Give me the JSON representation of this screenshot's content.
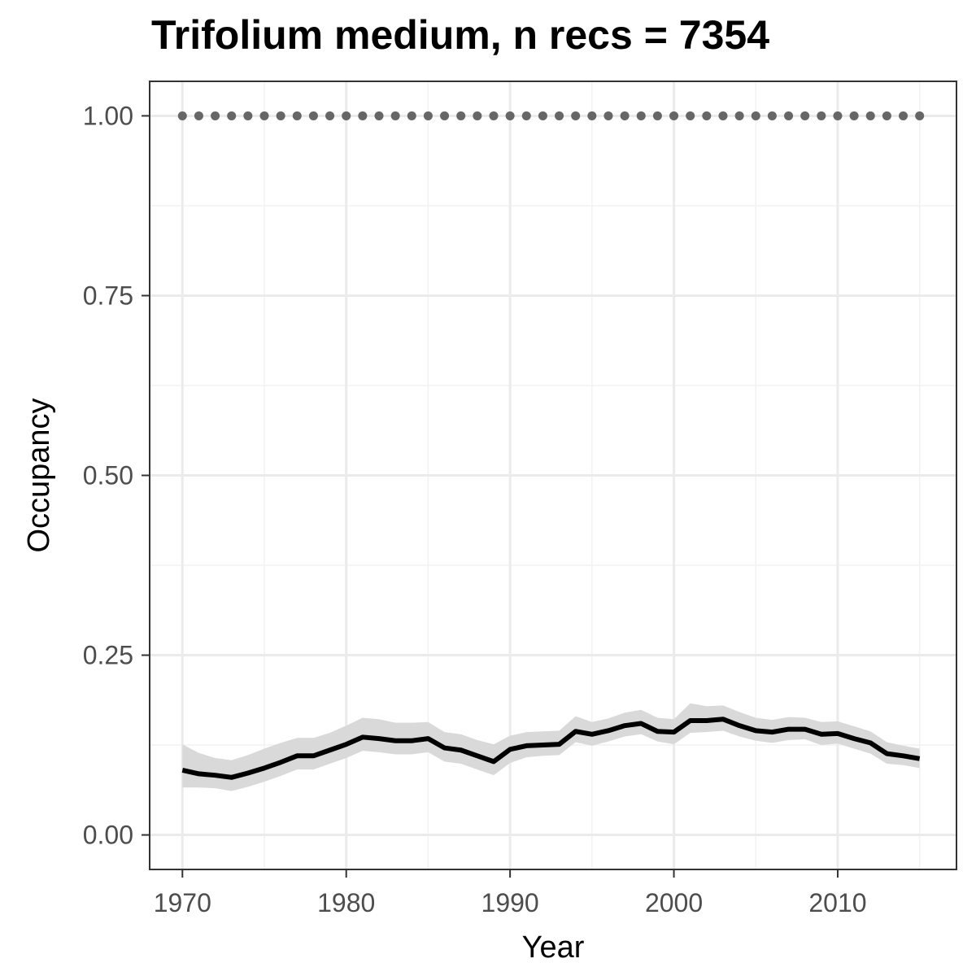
{
  "chart_data": {
    "type": "line",
    "title": "Trifolium medium, n recs = 7354",
    "xlabel": "Year",
    "ylabel": "Occupancy",
    "xlim": [
      1968,
      2017.25
    ],
    "ylim": [
      -0.048,
      1.048
    ],
    "grid": true,
    "x_ticks": [
      1970,
      1980,
      1990,
      2000,
      2010
    ],
    "x_tick_labels": [
      "1970",
      "1980",
      "1990",
      "2000",
      "2010"
    ],
    "y_ticks": [
      0,
      0.25,
      0.5,
      0.75,
      1.0
    ],
    "y_tick_labels": [
      "0.00",
      "0.25",
      "0.50",
      "0.75",
      "1.00"
    ],
    "series": [
      {
        "style": "solid",
        "color": "#000000",
        "x": [
          1970,
          1971,
          1972,
          1973,
          1974,
          1975,
          1976,
          1977,
          1978,
          1979,
          1980,
          1981,
          1982,
          1983,
          1984,
          1985,
          1986,
          1987,
          1988,
          1989,
          1990,
          1991,
          1992,
          1993,
          1994,
          1995,
          1996,
          1997,
          1998,
          1999,
          2000,
          2001,
          2002,
          2003,
          2004,
          2005,
          2006,
          2007,
          2008,
          2009,
          2010,
          2011,
          2012,
          2013,
          2014,
          2015
        ],
        "values": [
          0.09,
          0.085,
          0.083,
          0.08,
          0.086,
          0.093,
          0.101,
          0.11,
          0.11,
          0.118,
          0.126,
          0.136,
          0.134,
          0.131,
          0.131,
          0.134,
          0.121,
          0.118,
          0.11,
          0.102,
          0.119,
          0.124,
          0.125,
          0.126,
          0.144,
          0.14,
          0.145,
          0.152,
          0.155,
          0.144,
          0.143,
          0.159,
          0.159,
          0.161,
          0.152,
          0.145,
          0.143,
          0.147,
          0.147,
          0.14,
          0.141,
          0.134,
          0.128,
          0.113,
          0.11,
          0.106
        ],
        "ci_lower": [
          0.066,
          0.066,
          0.065,
          0.061,
          0.067,
          0.074,
          0.082,
          0.091,
          0.091,
          0.099,
          0.107,
          0.117,
          0.115,
          0.112,
          0.112,
          0.115,
          0.102,
          0.099,
          0.091,
          0.083,
          0.1,
          0.108,
          0.11,
          0.111,
          0.129,
          0.124,
          0.13,
          0.137,
          0.14,
          0.13,
          0.126,
          0.142,
          0.143,
          0.145,
          0.137,
          0.131,
          0.128,
          0.132,
          0.133,
          0.125,
          0.127,
          0.12,
          0.113,
          0.099,
          0.097,
          0.093
        ],
        "ci_upper": [
          0.126,
          0.114,
          0.107,
          0.104,
          0.111,
          0.12,
          0.128,
          0.135,
          0.135,
          0.142,
          0.152,
          0.163,
          0.161,
          0.156,
          0.156,
          0.157,
          0.143,
          0.14,
          0.132,
          0.126,
          0.138,
          0.143,
          0.144,
          0.145,
          0.165,
          0.157,
          0.162,
          0.17,
          0.174,
          0.163,
          0.161,
          0.183,
          0.179,
          0.18,
          0.171,
          0.163,
          0.16,
          0.164,
          0.163,
          0.157,
          0.158,
          0.151,
          0.144,
          0.129,
          0.124,
          0.12
        ]
      },
      {
        "style": "dotted",
        "color": "#666666",
        "x": [
          1970,
          1971,
          1972,
          1973,
          1974,
          1975,
          1976,
          1977,
          1978,
          1979,
          1980,
          1981,
          1982,
          1983,
          1984,
          1985,
          1986,
          1987,
          1988,
          1989,
          1990,
          1991,
          1992,
          1993,
          1994,
          1995,
          1996,
          1997,
          1998,
          1999,
          2000,
          2001,
          2002,
          2003,
          2004,
          2005,
          2006,
          2007,
          2008,
          2009,
          2010,
          2011,
          2012,
          2013,
          2014,
          2015
        ],
        "values": [
          1,
          1,
          1,
          1,
          1,
          1,
          1,
          1,
          1,
          1,
          1,
          1,
          1,
          1,
          1,
          1,
          1,
          1,
          1,
          1,
          1,
          1,
          1,
          1,
          1,
          1,
          1,
          1,
          1,
          1,
          1,
          1,
          1,
          1,
          1,
          1,
          1,
          1,
          1,
          1,
          1,
          1,
          1,
          1,
          1,
          1
        ]
      }
    ]
  }
}
